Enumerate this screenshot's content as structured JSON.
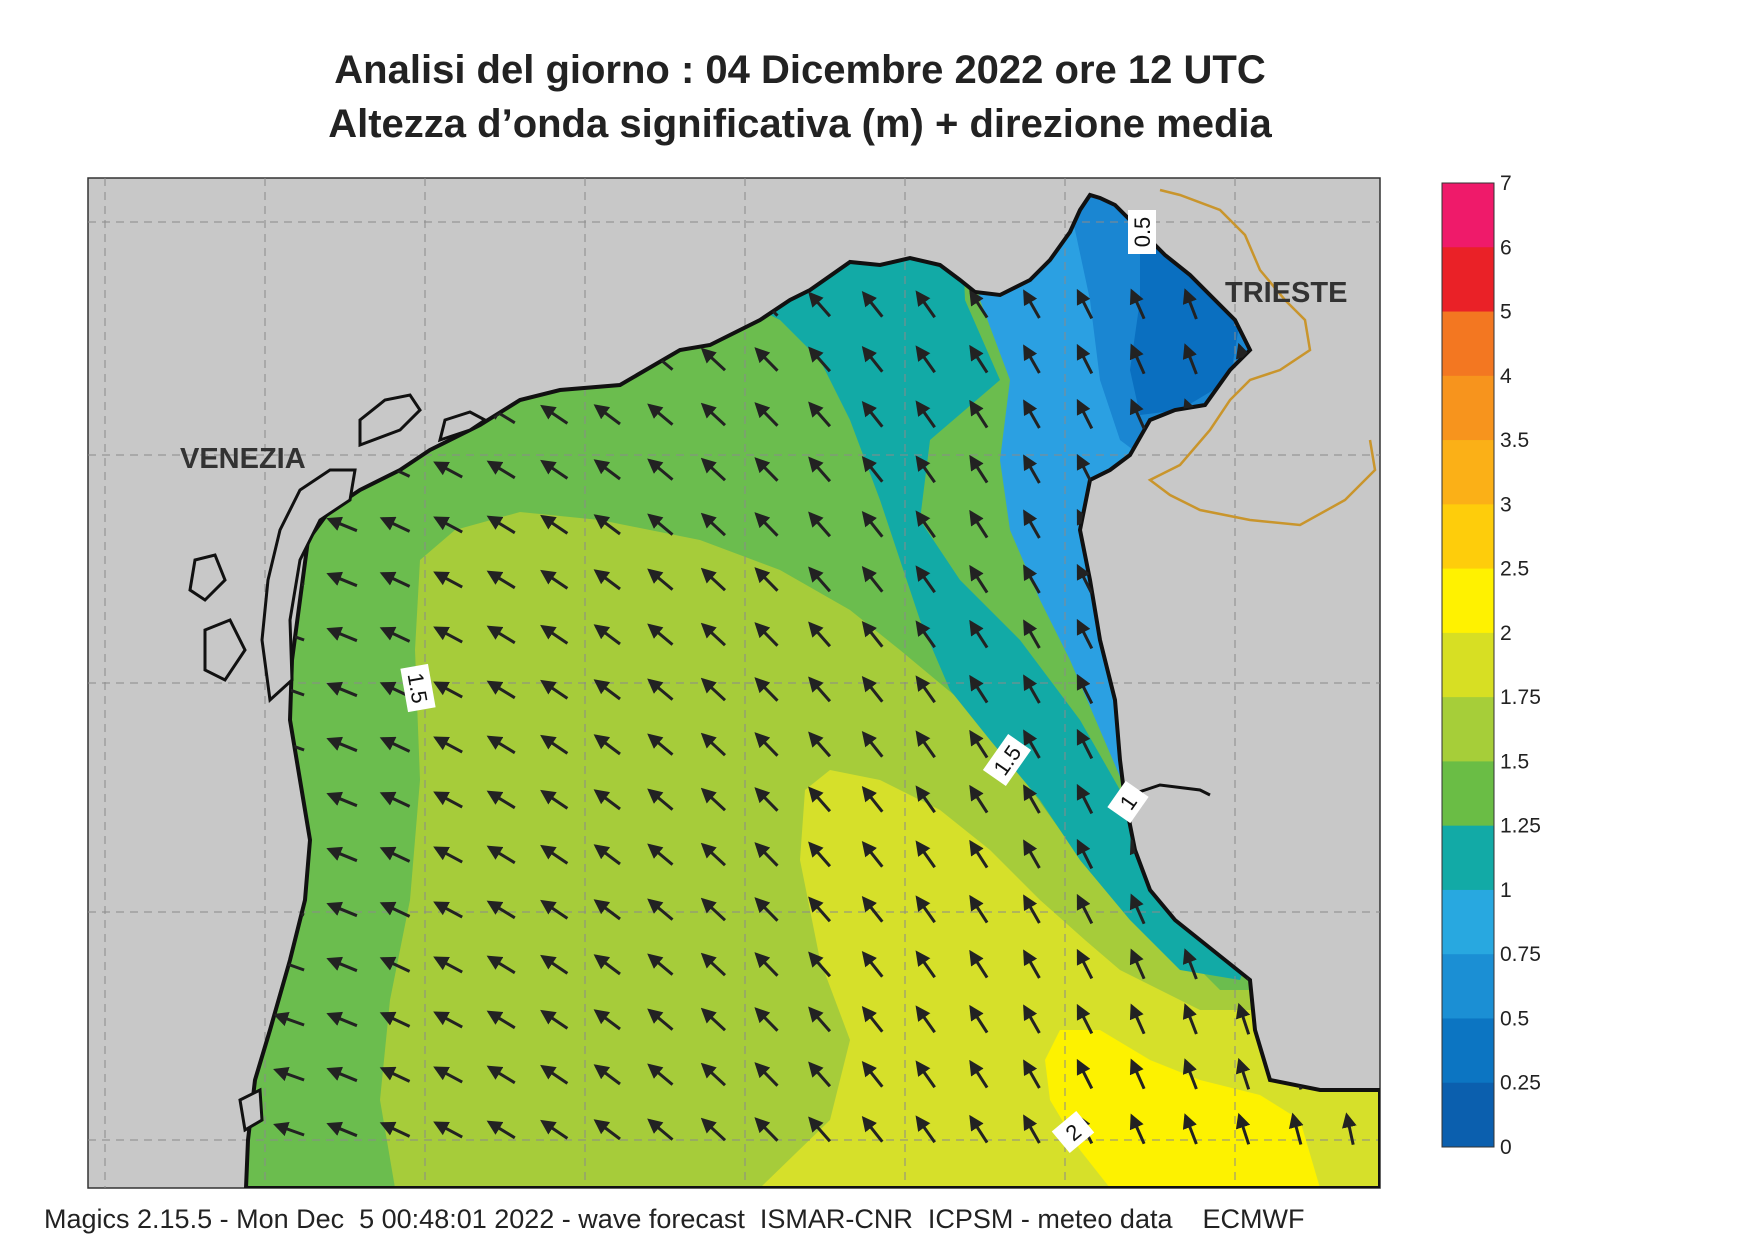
{
  "title": {
    "line1": "Analisi del giorno :  04 Dicembre  2022   ore 12 UTC",
    "line2": "Altezza d’onda significativa (m) + direzione media"
  },
  "map": {
    "cities": [
      {
        "name": "VENEZIA"
      },
      {
        "name": "TRIESTE"
      }
    ],
    "contour_labels": [
      "0.5",
      "1.5",
      "1.5",
      "1",
      "2"
    ],
    "field_colors": {
      "land": "#c8c8c8",
      "h_0_25": "#0a6fc0",
      "h_0_5": "#1a86d2",
      "h_0_75": "#2ba0e2",
      "h_1": "#12aaa6",
      "h_1_25": "#6bbd4e",
      "h_1_5": "#a6cc3a",
      "h_1_75": "#d6e02a",
      "h_2": "#fdf200"
    },
    "arrow_color": "#222222",
    "mean_direction": "NW"
  },
  "colorbar": {
    "ticks": [
      "7",
      "6",
      "5",
      "4",
      "3.5",
      "3",
      "2.5",
      "2",
      "1.75",
      "1.5",
      "1.25",
      "1",
      "0.75",
      "0.5",
      "0.25",
      "0"
    ],
    "colors": [
      "#ef1a6a",
      "#ea2127",
      "#f37721",
      "#f7941d",
      "#fbb017",
      "#fecd0b",
      "#fff200",
      "#d7df23",
      "#a6ce39",
      "#6abd45",
      "#12aaa6",
      "#28a8e0",
      "#1b8fd4",
      "#0c75c2",
      "#0b5fae"
    ]
  },
  "footer": "Magics 2.15.5 - Mon Dec  5 00:48:01 2022 - wave forecast  ISMAR-CNR  ICPSM - meteo data    ECMWF"
}
